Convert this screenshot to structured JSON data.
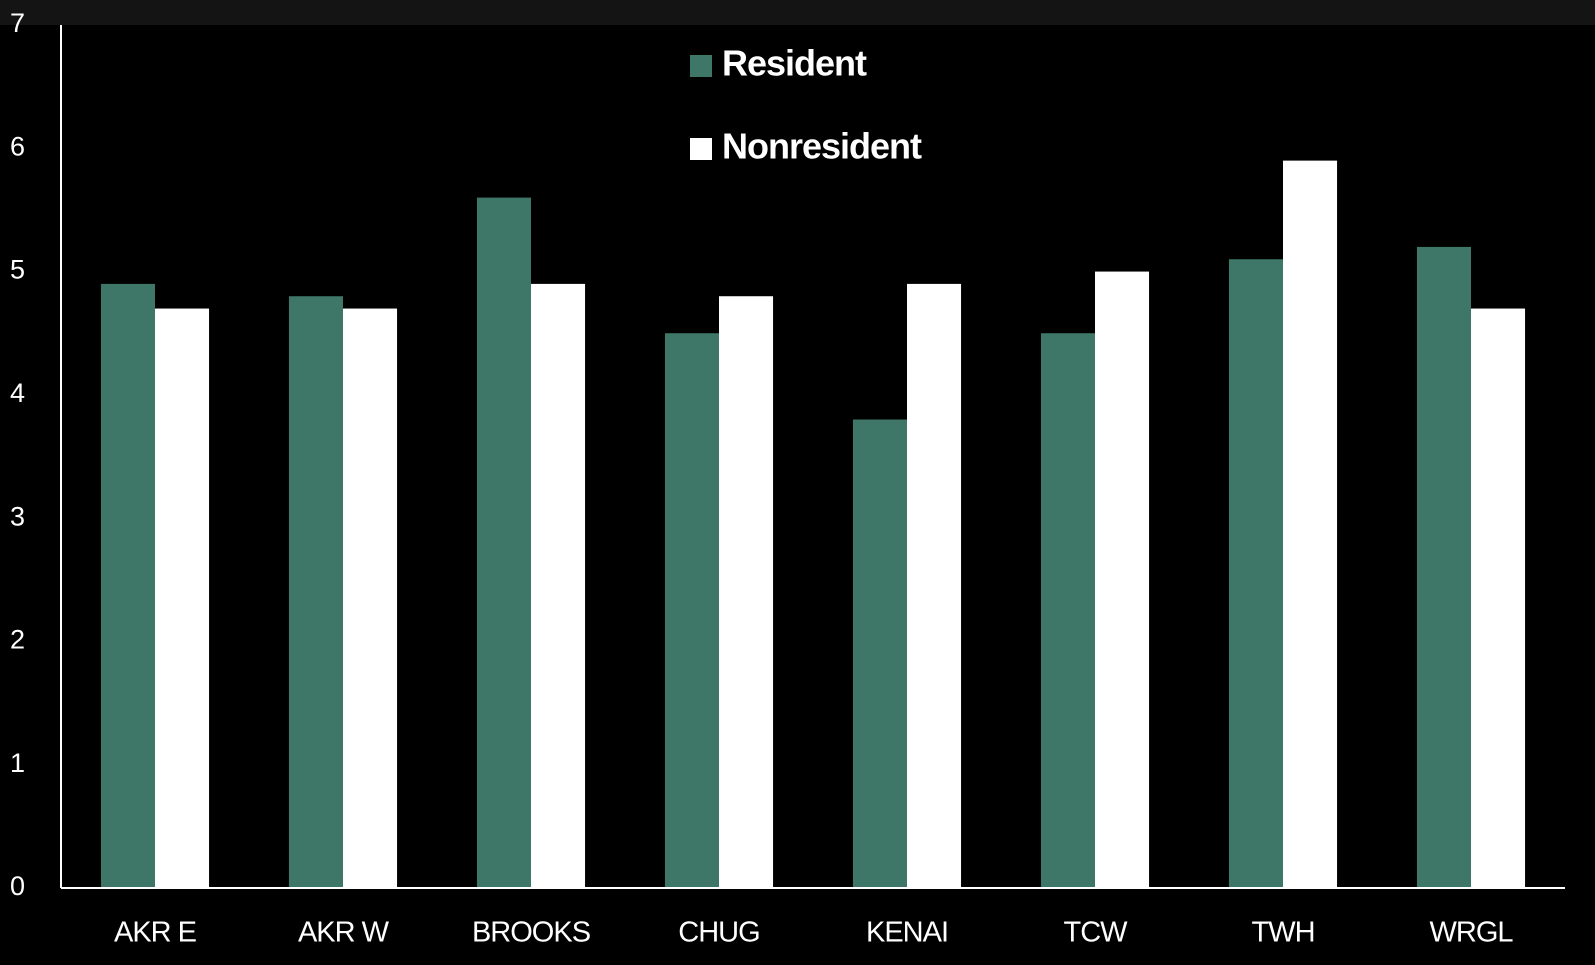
{
  "chart_data": {
    "type": "bar",
    "categories": [
      "AKR E",
      "AKR W",
      "BROOKS",
      "CHUG",
      "KENAI",
      "TCW",
      "TWH",
      "WRGL"
    ],
    "series": [
      {
        "name": "Resident",
        "color": "#3e7767",
        "values": [
          4.9,
          4.8,
          5.6,
          4.5,
          3.8,
          4.5,
          5.1,
          5.2
        ]
      },
      {
        "name": "Nonresident",
        "color": "#ffffff",
        "values": [
          4.7,
          4.7,
          4.9,
          4.8,
          4.9,
          5.0,
          5.9,
          4.7
        ]
      }
    ],
    "ylim": [
      0,
      7
    ],
    "yticks": [
      0,
      1,
      2,
      3,
      4,
      5,
      6,
      7
    ],
    "grid": false,
    "legend": "top"
  }
}
